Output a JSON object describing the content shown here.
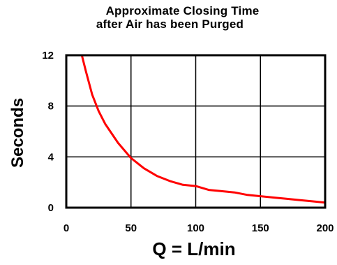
{
  "chart_data": {
    "type": "line",
    "title_lines": [
      "Approximate Closing Time",
      "after Air has been Purged"
    ],
    "xlabel": "Q = L/min",
    "ylabel": "Seconds",
    "xlim": [
      0,
      200
    ],
    "ylim": [
      0,
      12
    ],
    "x_ticks": [
      0,
      50,
      100,
      150,
      200
    ],
    "y_ticks": [
      0,
      4,
      8,
      12
    ],
    "grid": true,
    "legend": "none",
    "series": [
      {
        "color": "#ff0000",
        "x": [
          12,
          15,
          20,
          25,
          30,
          40,
          50,
          60,
          70,
          80,
          90,
          100,
          110,
          120,
          130,
          140,
          150,
          160,
          170,
          180,
          190,
          200
        ],
        "y": [
          12,
          10.8,
          8.9,
          7.6,
          6.6,
          5.1,
          3.9,
          3.1,
          2.5,
          2.1,
          1.8,
          1.7,
          1.4,
          1.3,
          1.2,
          1.0,
          0.9,
          0.8,
          0.7,
          0.6,
          0.5,
          0.4
        ]
      }
    ]
  }
}
